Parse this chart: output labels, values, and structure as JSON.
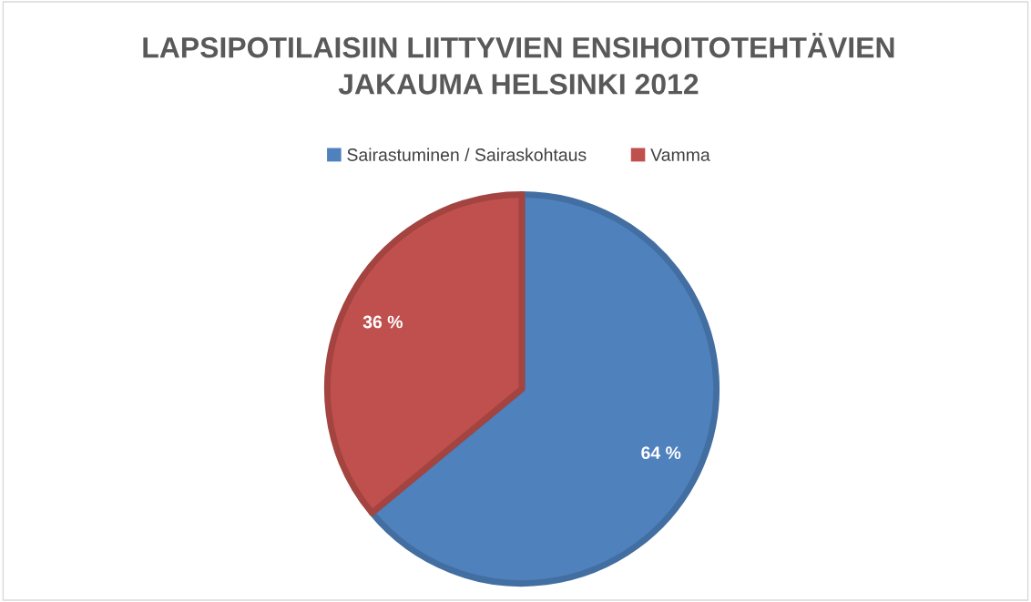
{
  "chart_data": {
    "type": "pie",
    "title": "LAPSIPOTILAISIIN LIITTYVIEN ENSIHOITOTEHTÄVIEN\nJAKAUMA HELSINKI 2012",
    "categories": [
      "Sairastuminen / Sairaskohtaus",
      "Vamma"
    ],
    "values": [
      64,
      36
    ],
    "colors": [
      "#4f81bd",
      "#c0504d"
    ],
    "value_labels": [
      "64 %",
      "36 %"
    ],
    "legend": "top"
  }
}
